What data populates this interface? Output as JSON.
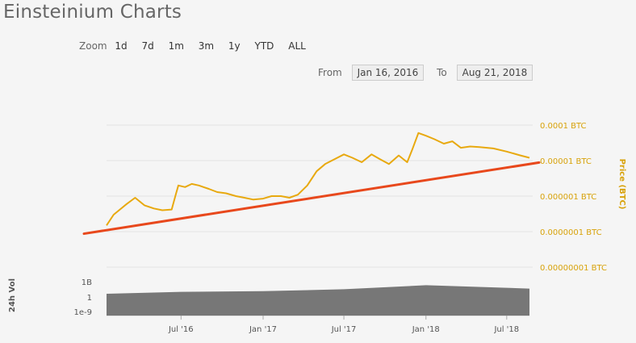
{
  "title": "Einsteinium Charts",
  "zoom": {
    "label": "Zoom",
    "options": [
      "1d",
      "7d",
      "1m",
      "3m",
      "1y",
      "YTD",
      "ALL"
    ]
  },
  "range": {
    "from_label": "From",
    "from_value": "Jan 16, 2016",
    "to_label": "To",
    "to_value": "Aug 21, 2018"
  },
  "colors": {
    "price_line": "#e8a90f",
    "trend_line": "#e8481c",
    "volume": "#777777",
    "axis_text": "#d8a20a"
  },
  "chart_data": [
    {
      "type": "line",
      "ylabel": "Price (BTC)",
      "yscale": "log",
      "ylim": [
        1e-08,
        0.0001
      ],
      "yticks": [
        "0.0001 BTC",
        "0.00001 BTC",
        "0.000001 BTC",
        "0.0000001 BTC",
        "0.00000001 BTC"
      ],
      "xlim": [
        "2016-01-16",
        "2018-08-21"
      ],
      "xticks": [
        "Jul '16",
        "Jan '17",
        "Jul '17",
        "Jan '18",
        "Jul '18"
      ],
      "series": [
        {
          "type": "line",
          "x": [
            "2016-01-16",
            "2016-02-01",
            "2016-03-01",
            "2016-03-20",
            "2016-04-10",
            "2016-05-01",
            "2016-05-20",
            "2016-06-10",
            "2016-06-20",
            "2016-06-25",
            "2016-07-10",
            "2016-07-25",
            "2016-08-10",
            "2016-09-01",
            "2016-09-20",
            "2016-10-10",
            "2016-11-01",
            "2016-11-20",
            "2016-12-10",
            "2017-01-01",
            "2017-01-20",
            "2017-02-10",
            "2017-03-01",
            "2017-03-20",
            "2017-04-10",
            "2017-05-01",
            "2017-05-20",
            "2017-06-10",
            "2017-07-01",
            "2017-07-20",
            "2017-08-10",
            "2017-09-01",
            "2017-09-20",
            "2017-10-10",
            "2017-11-01",
            "2017-11-20",
            "2017-12-01",
            "2017-12-15",
            "2018-01-01",
            "2018-01-20",
            "2018-02-10",
            "2018-03-01",
            "2018-03-20",
            "2018-04-10",
            "2018-05-01",
            "2018-06-01",
            "2018-07-01",
            "2018-08-01",
            "2018-08-21"
          ],
          "y": [
            1.5e-07,
            3e-07,
            6e-07,
            9e-07,
            5.5e-07,
            4.5e-07,
            4e-07,
            4.2e-07,
            1.2e-06,
            2e-06,
            1.8e-06,
            2.2e-06,
            2e-06,
            1.6e-06,
            1.3e-06,
            1.2e-06,
            1e-06,
            9e-07,
            8e-07,
            8.5e-07,
            1e-06,
            1e-06,
            9e-07,
            1.1e-06,
            2e-06,
            5e-06,
            8e-06,
            1.1e-05,
            1.5e-05,
            1.2e-05,
            9e-06,
            1.5e-05,
            1.1e-05,
            8e-06,
            1.4e-05,
            9e-06,
            2e-05,
            6e-05,
            5e-05,
            4e-05,
            3e-05,
            3.5e-05,
            2.3e-05,
            2.5e-05,
            2.4e-05,
            2.2e-05,
            1.8e-05,
            1.4e-05,
            1.2e-05
          ]
        },
        {
          "type": "line",
          "x": [
            "2016-01-16",
            "2018-08-21"
          ],
          "y": [
            1.1e-07,
            8e-06
          ]
        }
      ]
    },
    {
      "type": "area",
      "ylabel": "24h Vol",
      "yscale": "log",
      "yticks": [
        "1B",
        "1",
        "1e-9"
      ],
      "note_values": "approximate daily volume, log scale",
      "x": [
        "2016-01-16",
        "2016-07-01",
        "2017-01-01",
        "2017-07-01",
        "2018-01-01",
        "2018-07-01",
        "2018-08-21"
      ],
      "y": [
        30000.0,
        50000.0,
        60000.0,
        100000.0,
        300000.0,
        150000.0,
        120000.0
      ]
    }
  ]
}
